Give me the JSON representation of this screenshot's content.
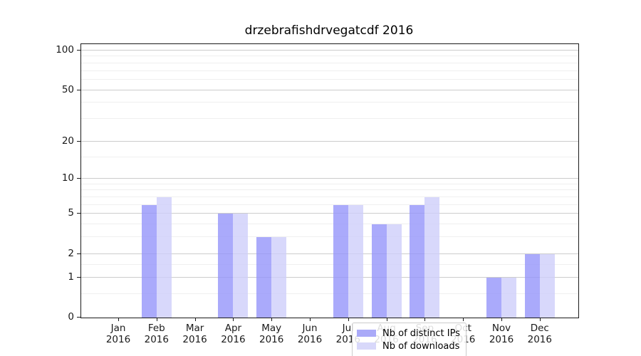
{
  "title": "drzebrafishdrvegatcdf 2016",
  "chart_data": {
    "type": "bar",
    "title": "drzebrafishdrvegatcdf 2016",
    "scale": "log1p",
    "categories": [
      "Jan",
      "Feb",
      "Mar",
      "Apr",
      "May",
      "Jun",
      "Jul",
      "Aug",
      "Sep",
      "Oct",
      "Nov",
      "Dec"
    ],
    "year": "2016",
    "series": [
      {
        "name": "Nb of distinct IPs",
        "color": "#aaaaf8",
        "fill_rgba": "rgba(149,149,250,0.8)",
        "values": [
          0,
          6,
          0,
          5,
          3,
          0,
          6,
          4,
          6,
          0,
          1,
          2
        ]
      },
      {
        "name": "Nb of downloads",
        "color": "#d8d8fa",
        "fill_rgba": "rgba(206,206,250,0.8)",
        "values": [
          0,
          7,
          0,
          5,
          3,
          0,
          6,
          4,
          7,
          0,
          1,
          2
        ]
      }
    ],
    "y_major_ticks": [
      0,
      1,
      2,
      5,
      10,
      20,
      50,
      100
    ],
    "y_minor_ticks": [
      0.5,
      1.5,
      3,
      4,
      6,
      7,
      8,
      9,
      15,
      30,
      40,
      60,
      70,
      80,
      90
    ],
    "ylim": [
      0,
      109
    ],
    "xlabel": "",
    "ylabel": "",
    "grid": "on",
    "grid_major_color": "#cccccc",
    "grid_minor_color": "#efefef",
    "legend_position": "lower center"
  }
}
